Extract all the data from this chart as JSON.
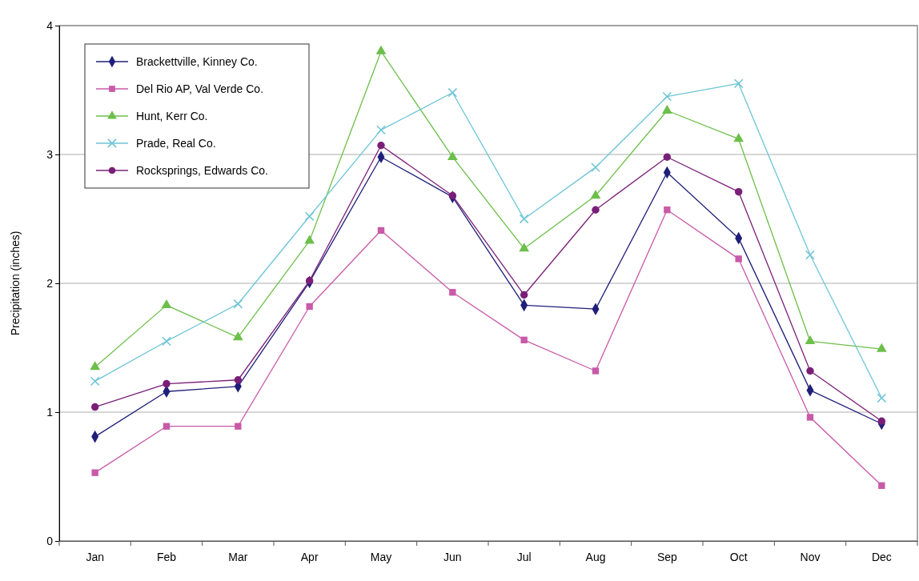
{
  "chart_data": {
    "type": "line",
    "ylabel": "Precipitation (inches)",
    "categories": [
      "Jan",
      "Feb",
      "Mar",
      "Apr",
      "May",
      "Jun",
      "Jul",
      "Aug",
      "Sep",
      "Oct",
      "Nov",
      "Dec"
    ],
    "series": [
      {
        "name": "Brackettville, Kinney Co.",
        "color": "#1f1f7a",
        "marker": "diamond",
        "values": [
          0.81,
          1.16,
          1.2,
          2.01,
          2.98,
          2.67,
          1.83,
          1.8,
          2.86,
          2.35,
          1.17,
          0.91
        ]
      },
      {
        "name": "Del Rio AP, Val Verde Co.",
        "color": "#c85aa8",
        "marker": "square",
        "values": [
          0.53,
          0.89,
          0.89,
          1.82,
          2.41,
          1.93,
          1.56,
          1.32,
          2.57,
          2.19,
          0.96,
          0.43
        ]
      },
      {
        "name": "Hunt, Kerr Co.",
        "color": "#6cbf4a",
        "marker": "triangle",
        "values": [
          1.35,
          1.83,
          1.58,
          2.33,
          3.8,
          2.98,
          2.27,
          2.68,
          3.34,
          3.12,
          1.55,
          1.49
        ]
      },
      {
        "name": "Prade, Real Co.",
        "color": "#6cc4d6",
        "marker": "cross",
        "values": [
          1.24,
          1.55,
          1.84,
          2.52,
          3.19,
          3.48,
          2.5,
          2.9,
          3.45,
          3.55,
          2.22,
          1.11
        ]
      },
      {
        "name": "Rocksprings, Edwards Co.",
        "color": "#7a1f78",
        "marker": "circle",
        "values": [
          1.04,
          1.22,
          1.25,
          2.02,
          3.07,
          2.68,
          1.91,
          2.57,
          2.98,
          2.71,
          1.32,
          0.93
        ]
      }
    ],
    "ylim": [
      0,
      4
    ],
    "yticks": [
      0,
      1,
      2,
      3,
      4
    ],
    "grid": "y",
    "legend": "top left"
  }
}
